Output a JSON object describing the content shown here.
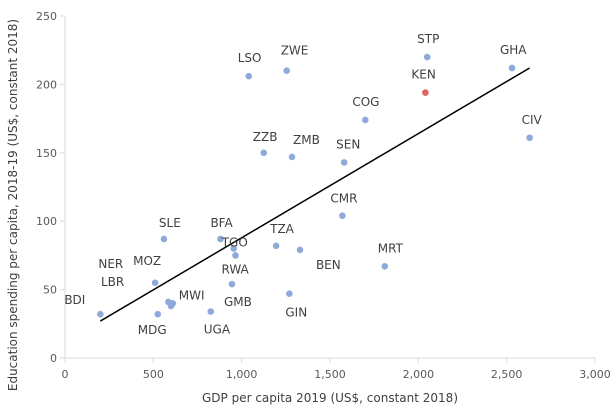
{
  "chart_data": {
    "type": "scatter",
    "xlabel": "GDP per capita 2019 (US$, constant 2018)",
    "ylabel": "Education spending per capita, 2018-19 (US$, constant 2018)",
    "xlim": [
      0,
      3000
    ],
    "ylim": [
      0,
      250
    ],
    "x_ticks": [
      {
        "value": 0,
        "label": "0"
      },
      {
        "value": 500,
        "label": "500"
      },
      {
        "value": 1000,
        "label": "1,000"
      },
      {
        "value": 1500,
        "label": "1,500"
      },
      {
        "value": 2000,
        "label": "2,000"
      },
      {
        "value": 2500,
        "label": "2,500"
      },
      {
        "value": 3000,
        "label": "3,000"
      }
    ],
    "y_ticks": [
      {
        "value": 0,
        "label": "0"
      },
      {
        "value": 50,
        "label": "50"
      },
      {
        "value": 100,
        "label": "100"
      },
      {
        "value": 150,
        "label": "150"
      },
      {
        "value": 200,
        "label": "200"
      },
      {
        "value": 250,
        "label": "250"
      }
    ],
    "grid": false,
    "colors": {
      "point": "#8eaadb",
      "highlight": "#e06666",
      "trendline": "#000000",
      "axis": "#d9d9d9"
    },
    "trendline": {
      "x": [
        200,
        2630
      ],
      "y": [
        27,
        212
      ]
    },
    "points": [
      {
        "label": "BDI",
        "x": 200,
        "y": 32,
        "label_dx": -36,
        "label_dy": -10
      },
      {
        "label": "LBR",
        "x": 600,
        "y": 38,
        "label_dx": -70,
        "label_dy": -20
      },
      {
        "label": "NER",
        "x": 585,
        "y": 41,
        "label_dx": -70,
        "label_dy": -34
      },
      {
        "label": "MOZ",
        "x": 510,
        "y": 55,
        "label_dx": -22,
        "label_dy": -18
      },
      {
        "label": "MWI",
        "x": 610,
        "y": 40,
        "label_dx": 6,
        "label_dy": -4
      },
      {
        "label": "MDG",
        "x": 525,
        "y": 32,
        "label_dx": -20,
        "label_dy": 20
      },
      {
        "label": "SLE",
        "x": 560,
        "y": 87,
        "label_dx": -5,
        "label_dy": -12
      },
      {
        "label": "UGA",
        "x": 825,
        "y": 34,
        "label_dx": -7,
        "label_dy": 22
      },
      {
        "label": "GMB",
        "x": 945,
        "y": 54,
        "label_dx": -8,
        "label_dy": 22
      },
      {
        "label": "RWA",
        "x": 965,
        "y": 75,
        "label_dx": -14,
        "label_dy": 18
      },
      {
        "label": "BFA",
        "x": 880,
        "y": 87,
        "label_dx": -10,
        "label_dy": -12
      },
      {
        "label": "TGO",
        "x": 955,
        "y": 80,
        "label_dx": -12,
        "label_dy": -2
      },
      {
        "label": "TZA",
        "x": 1195,
        "y": 82,
        "label_dx": -6,
        "label_dy": -13
      },
      {
        "label": "BEN",
        "x": 1330,
        "y": 79,
        "label_dx": 16,
        "label_dy": 19
      },
      {
        "label": "GIN",
        "x": 1270,
        "y": 47,
        "label_dx": -4,
        "label_dy": 23
      },
      {
        "label": "CMR",
        "x": 1570,
        "y": 104,
        "label_dx": -12,
        "label_dy": -13
      },
      {
        "label": "MRT",
        "x": 1810,
        "y": 67,
        "label_dx": -7,
        "label_dy": -14
      },
      {
        "label": "ZZB",
        "x": 1125,
        "y": 150,
        "label_dx": -11,
        "label_dy": -12
      },
      {
        "label": "ZMB",
        "x": 1285,
        "y": 147,
        "label_dx": 1,
        "label_dy": -13
      },
      {
        "label": "SEN",
        "x": 1580,
        "y": 143,
        "label_dx": -8,
        "label_dy": -14
      },
      {
        "label": "COG",
        "x": 1700,
        "y": 174,
        "label_dx": -13,
        "label_dy": -14
      },
      {
        "label": "LSO",
        "x": 1040,
        "y": 206,
        "label_dx": -11,
        "label_dy": -14
      },
      {
        "label": "ZWE",
        "x": 1255,
        "y": 210,
        "label_dx": -6,
        "label_dy": -16
      },
      {
        "label": "STP",
        "x": 2050,
        "y": 220,
        "label_dx": -10,
        "label_dy": -14
      },
      {
        "label": "KEN",
        "x": 2040,
        "y": 194,
        "label_dx": -14,
        "label_dy": -14,
        "highlight": true
      },
      {
        "label": "GHA",
        "x": 2530,
        "y": 212,
        "label_dx": -12,
        "label_dy": -14
      },
      {
        "label": "CIV",
        "x": 2630,
        "y": 161,
        "label_dx": -8,
        "label_dy": -14
      }
    ]
  }
}
